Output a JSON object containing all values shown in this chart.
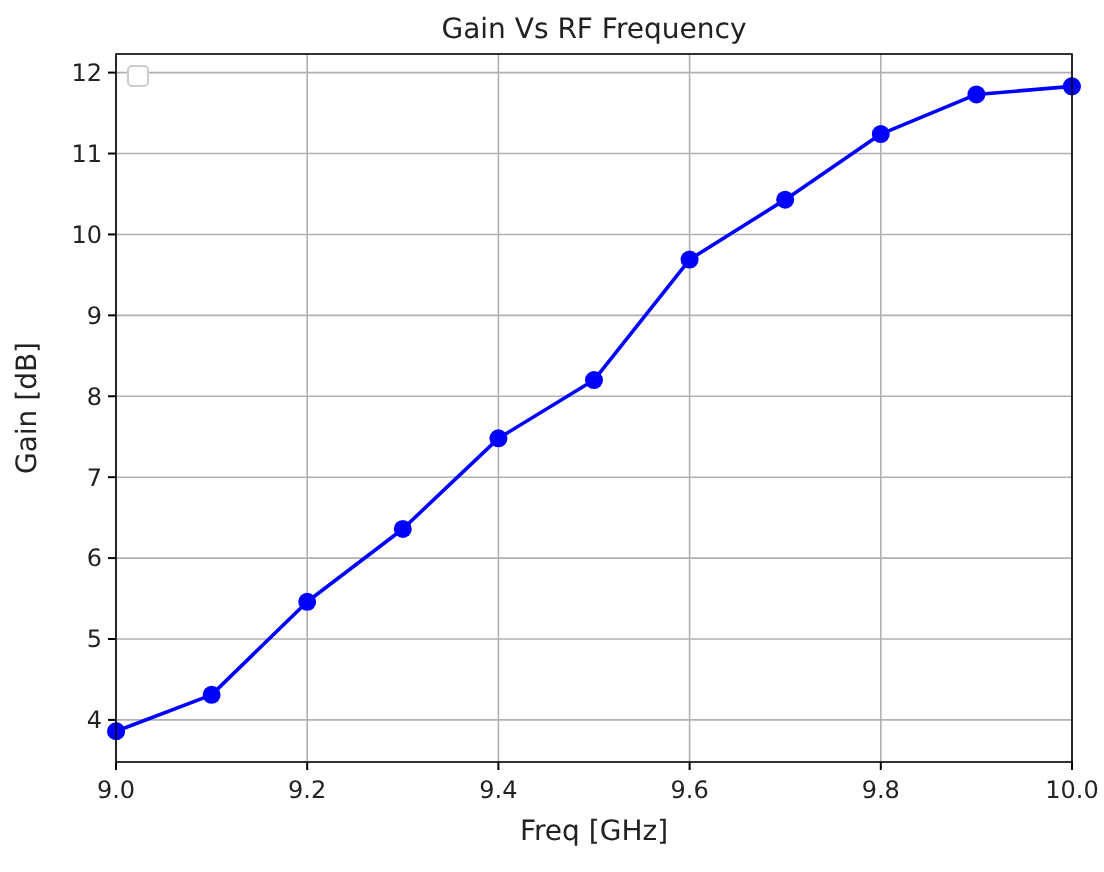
{
  "chart_data": {
    "type": "line",
    "title": "Gain Vs RF Frequency",
    "xlabel": "Freq [GHz]",
    "ylabel": "Gain [dB]",
    "x": [
      9.0,
      9.1,
      9.2,
      9.3,
      9.4,
      9.5,
      9.6,
      9.7,
      9.8,
      9.9,
      10.0
    ],
    "series": [
      {
        "color": "#0000ff",
        "values": [
          3.86,
          4.31,
          5.46,
          6.36,
          7.48,
          8.2,
          9.69,
          10.43,
          11.24,
          11.73,
          11.83
        ]
      }
    ],
    "xlim": [
      9,
      10
    ],
    "xticks": [
      {
        "value": 9,
        "label": "9.0"
      },
      9.2,
      9.4,
      9.6,
      9.8,
      {
        "value": 10,
        "label": "10.0"
      }
    ],
    "ylim": [
      3.48,
      12.23
    ],
    "yticks": [
      4,
      5,
      6,
      7,
      8,
      9,
      10,
      11,
      12
    ],
    "grid": true,
    "marker": "circle",
    "line_style": "solid"
  }
}
